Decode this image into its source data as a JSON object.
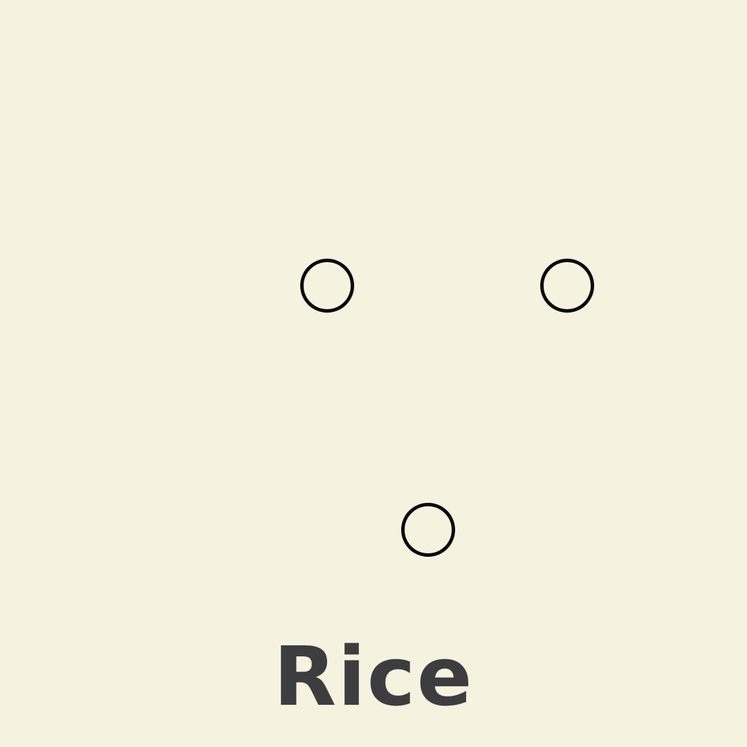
{
  "background_color": "#f5f2e0",
  "marker_color": "#0b0b0b",
  "label_color": "#3d3d40",
  "markers": [
    {
      "id": "circle-1",
      "shape": "circle-outline"
    },
    {
      "id": "circle-2",
      "shape": "circle-outline"
    },
    {
      "id": "circle-3",
      "shape": "circle-outline"
    }
  ],
  "caption": "Rice"
}
